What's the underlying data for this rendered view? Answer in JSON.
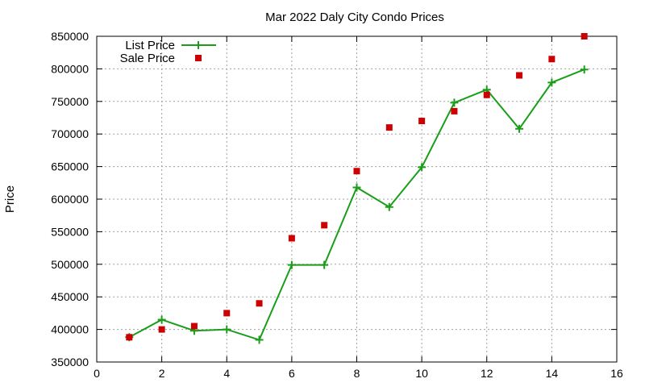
{
  "chart_data": {
    "type": "line",
    "title": "Mar 2022 Daly City Condo Prices",
    "xlabel": "",
    "ylabel": "Price",
    "xlim": [
      0,
      16
    ],
    "ylim": [
      350000,
      850000
    ],
    "xticks": [
      0,
      2,
      4,
      6,
      8,
      10,
      12,
      14,
      16
    ],
    "yticks": [
      350000,
      400000,
      450000,
      500000,
      550000,
      600000,
      650000,
      700000,
      750000,
      800000,
      850000
    ],
    "grid": true,
    "legend_position": "top-left",
    "series": [
      {
        "name": "List Price",
        "style": "line-plus",
        "color": "#1a9e1a",
        "x": [
          1,
          2,
          3,
          4,
          5,
          6,
          7,
          8,
          9,
          10,
          11,
          12,
          13,
          14,
          15
        ],
        "y": [
          388000,
          415000,
          398000,
          400000,
          384000,
          499000,
          499000,
          618000,
          588000,
          649000,
          748000,
          768000,
          708000,
          779000,
          799000
        ]
      },
      {
        "name": "Sale Price",
        "style": "square-points",
        "color": "#cc0000",
        "x": [
          1,
          2,
          3,
          4,
          5,
          6,
          7,
          8,
          9,
          10,
          11,
          12,
          13,
          14,
          15
        ],
        "y": [
          388000,
          400000,
          405000,
          425000,
          440000,
          540000,
          560000,
          643000,
          710000,
          720000,
          735000,
          760000,
          790000,
          815000,
          850000
        ]
      }
    ]
  }
}
